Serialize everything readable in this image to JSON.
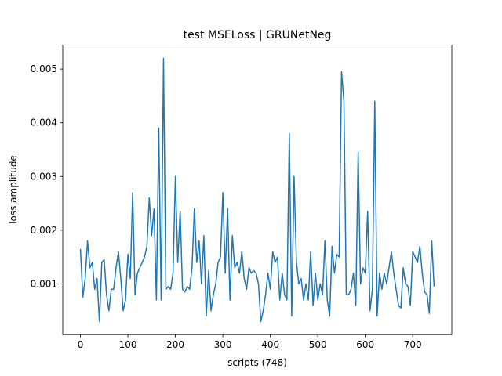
{
  "chart_data": {
    "type": "line",
    "title": "test MSELoss | GRUNetNeg",
    "x_label": "scripts (748)",
    "y_label": "loss amplitude",
    "x": [
      0,
      5,
      10,
      15,
      20,
      25,
      30,
      35,
      40,
      45,
      50,
      55,
      60,
      65,
      70,
      75,
      80,
      85,
      90,
      95,
      100,
      105,
      110,
      115,
      120,
      125,
      130,
      135,
      140,
      145,
      150,
      155,
      160,
      165,
      170,
      175,
      180,
      185,
      190,
      195,
      200,
      205,
      210,
      215,
      220,
      225,
      230,
      235,
      240,
      245,
      250,
      255,
      260,
      265,
      270,
      275,
      280,
      285,
      290,
      295,
      300,
      305,
      310,
      315,
      320,
      325,
      330,
      335,
      340,
      345,
      350,
      355,
      360,
      365,
      370,
      375,
      380,
      385,
      390,
      395,
      400,
      405,
      410,
      415,
      420,
      425,
      430,
      435,
      440,
      445,
      450,
      455,
      460,
      465,
      470,
      475,
      480,
      485,
      490,
      495,
      500,
      505,
      510,
      515,
      520,
      525,
      530,
      535,
      540,
      545,
      550,
      555,
      560,
      565,
      570,
      575,
      580,
      585,
      590,
      595,
      600,
      605,
      610,
      615,
      620,
      625,
      630,
      635,
      640,
      645,
      650,
      655,
      660,
      665,
      670,
      675,
      680,
      685,
      690,
      695,
      700,
      705,
      710,
      715,
      720,
      725,
      730,
      735,
      740,
      745
    ],
    "series": [
      {
        "name": "loss",
        "color": "#1f77b4",
        "values": [
          0.00165,
          0.00075,
          0.0011,
          0.0018,
          0.0013,
          0.0014,
          0.0009,
          0.0011,
          0.0003,
          0.0014,
          0.00145,
          0.0008,
          0.0005,
          0.0009,
          0.0009,
          0.0013,
          0.0016,
          0.0011,
          0.0005,
          0.0007,
          0.00155,
          0.0011,
          0.0027,
          0.0008,
          0.0012,
          0.0013,
          0.0014,
          0.0015,
          0.0017,
          0.0026,
          0.0019,
          0.0024,
          0.0007,
          0.0039,
          0.0007,
          0.0052,
          0.0009,
          0.00095,
          0.0009,
          0.0012,
          0.003,
          0.0014,
          0.00235,
          0.0009,
          0.00085,
          0.00095,
          0.0009,
          0.0013,
          0.0024,
          0.0014,
          0.0018,
          0.001,
          0.0019,
          0.0004,
          0.00125,
          0.0005,
          0.0008,
          0.001,
          0.0014,
          0.0015,
          0.0027,
          0.0012,
          0.0024,
          0.0007,
          0.0019,
          0.0013,
          0.0014,
          0.0012,
          0.0016,
          0.0011,
          0.0009,
          0.0013,
          0.0012,
          0.00125,
          0.0012,
          0.001,
          0.0003,
          0.0005,
          0.0008,
          0.0012,
          0.0009,
          0.0016,
          0.0014,
          0.0015,
          0.0007,
          0.0012,
          0.0008,
          0.0007,
          0.0038,
          0.0004,
          0.003,
          0.0014,
          0.001,
          0.0011,
          0.0007,
          0.001,
          0.0007,
          0.0016,
          0.0006,
          0.0012,
          0.0007,
          0.001,
          0.0008,
          0.0018,
          0.0007,
          0.0004,
          0.0017,
          0.0012,
          0.00155,
          0.0015,
          0.00495,
          0.0044,
          0.0008,
          0.0008,
          0.0009,
          0.0012,
          0.0006,
          0.00345,
          0.001,
          0.0013,
          0.0012,
          0.00235,
          0.0005,
          0.0009,
          0.0044,
          0.0004,
          0.0012,
          0.0009,
          0.0012,
          0.001,
          0.0013,
          0.0016,
          0.0012,
          0.0009,
          0.0006,
          0.00055,
          0.0013,
          0.001,
          0.00095,
          0.0006,
          0.0016,
          0.0015,
          0.0014,
          0.0017,
          0.0012,
          0.00085,
          0.0008,
          0.00045,
          0.0018,
          0.00095
        ]
      }
    ],
    "xlim": [
      -37.25,
      782.25
    ],
    "ylim": [
      5.5e-05,
      0.005445
    ],
    "xticks": [
      0,
      100,
      200,
      300,
      400,
      500,
      600,
      700
    ],
    "yticks": [
      0.001,
      0.002,
      0.003,
      0.004,
      0.005
    ],
    "grid": false
  }
}
